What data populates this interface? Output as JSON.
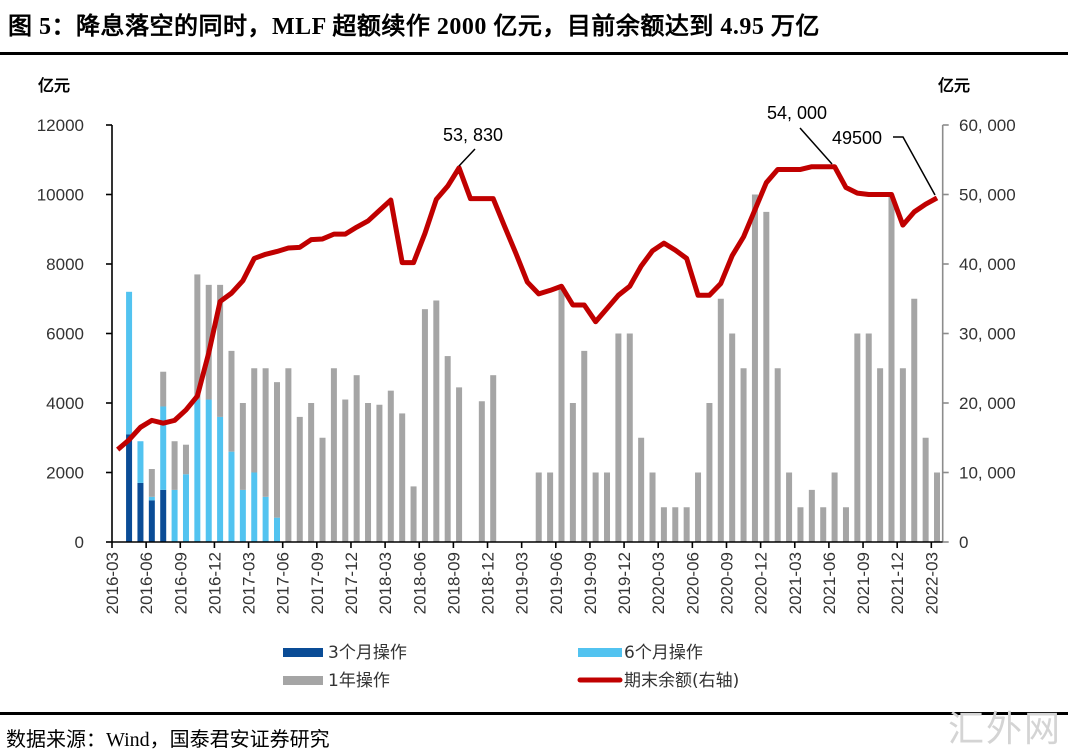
{
  "title": "图 5：降息落空的同时，MLF 超额续作 2000 亿元，目前余额达到 4.95 万亿",
  "source": "数据来源：Wind，国泰君安证券研究",
  "watermark": "汇外网",
  "colors": {
    "op_3m": "#0A4C96",
    "op_6m": "#52C3F0",
    "op_1y": "#A5A5A5",
    "balance": "#C00000"
  },
  "chart_data": {
    "type": "bar",
    "stacked": true,
    "title": "降息落空的同时，MLF 超额续作 2000 亿元，目前余额达到 4.95 万亿",
    "y_left_unit": "亿元",
    "y_right_unit": "亿元",
    "ylim_left": [
      0,
      12000
    ],
    "ylim_right": [
      0,
      60000
    ],
    "y_left_ticks": [
      "0",
      "2000",
      "4000",
      "6000",
      "8000",
      "10000",
      "12000"
    ],
    "y_right_ticks": [
      "0",
      "10, 000",
      "20, 000",
      "30, 000",
      "40, 000",
      "50, 000",
      "60, 000"
    ],
    "grid": false,
    "legend_position": "bottom",
    "categories": [
      "2016-03",
      "2016-04",
      "2016-05",
      "2016-06",
      "2016-07",
      "2016-08",
      "2016-09",
      "2016-10",
      "2016-11",
      "2016-12",
      "2017-01",
      "2017-02",
      "2017-03",
      "2017-04",
      "2017-05",
      "2017-06",
      "2017-07",
      "2017-08",
      "2017-09",
      "2017-10",
      "2017-11",
      "2017-12",
      "2018-01",
      "2018-02",
      "2018-03",
      "2018-04",
      "2018-05",
      "2018-06",
      "2018-07",
      "2018-08",
      "2018-09",
      "2018-10",
      "2018-11",
      "2018-12",
      "2019-01",
      "2019-02",
      "2019-03",
      "2019-04",
      "2019-05",
      "2019-06",
      "2019-07",
      "2019-08",
      "2019-09",
      "2019-10",
      "2019-11",
      "2019-12",
      "2020-01",
      "2020-02",
      "2020-03",
      "2020-04",
      "2020-05",
      "2020-06",
      "2020-07",
      "2020-08",
      "2020-09",
      "2020-10",
      "2020-11",
      "2020-12",
      "2021-01",
      "2021-02",
      "2021-03",
      "2021-04",
      "2021-05",
      "2021-06",
      "2021-07",
      "2021-08",
      "2021-09",
      "2021-10",
      "2021-11",
      "2021-12",
      "2022-01",
      "2022-02",
      "2022-03"
    ],
    "x_tick_labels": [
      "2016-03",
      "2016-06",
      "2016-09",
      "2016-12",
      "2017-03",
      "2017-06",
      "2017-09",
      "2017-12",
      "2018-03",
      "2018-06",
      "2018-09",
      "2018-12",
      "2019-03",
      "2019-06",
      "2019-09",
      "2019-12",
      "2020-03",
      "2020-06",
      "2020-09",
      "2020-12",
      "2021-03",
      "2021-06",
      "2021-09",
      "2021-12",
      "2022-03"
    ],
    "series": [
      {
        "name": "3个月操作",
        "type": "bar",
        "axis": "left",
        "color_key": "op_3m",
        "values": [
          0,
          3100,
          1700,
          1200,
          1500,
          0,
          0,
          0,
          0,
          0,
          0,
          0,
          0,
          0,
          0,
          0,
          0,
          0,
          0,
          0,
          0,
          0,
          0,
          0,
          0,
          0,
          0,
          0,
          0,
          0,
          0,
          0,
          0,
          0,
          0,
          0,
          0,
          0,
          0,
          0,
          0,
          0,
          0,
          0,
          0,
          0,
          0,
          0,
          0,
          0,
          0,
          0,
          0,
          0,
          0,
          0,
          0,
          0,
          0,
          0,
          0,
          0,
          0,
          0,
          0,
          0,
          0,
          0,
          0,
          0,
          0,
          0,
          0
        ]
      },
      {
        "name": "6个月操作",
        "type": "bar",
        "axis": "left",
        "color_key": "op_6m",
        "values": [
          0,
          4100,
          1200,
          100,
          2400,
          1500,
          1950,
          4100,
          4100,
          3600,
          2600,
          1500,
          2000,
          1300,
          700,
          0,
          0,
          0,
          0,
          0,
          0,
          0,
          0,
          0,
          0,
          0,
          0,
          0,
          0,
          0,
          0,
          0,
          0,
          0,
          0,
          0,
          0,
          0,
          0,
          0,
          0,
          0,
          0,
          0,
          0,
          0,
          0,
          0,
          0,
          0,
          0,
          0,
          0,
          0,
          0,
          0,
          0,
          0,
          0,
          0,
          0,
          0,
          0,
          0,
          0,
          0,
          0,
          0,
          0,
          0,
          0,
          0,
          0
        ]
      },
      {
        "name": "1年操作",
        "type": "bar",
        "axis": "left",
        "color_key": "op_1y",
        "values": [
          0,
          0,
          0,
          800,
          1000,
          1400,
          850,
          3600,
          3300,
          3800,
          2900,
          2500,
          3000,
          3700,
          3900,
          5000,
          3600,
          4000,
          3000,
          5000,
          4100,
          4800,
          4000,
          3950,
          4355,
          3700,
          1600,
          6700,
          6950,
          5350,
          4450,
          0,
          4050,
          4800,
          0,
          0,
          0,
          2000,
          2000,
          7300,
          4000,
          5500,
          2000,
          2000,
          6000,
          6000,
          3000,
          2000,
          1000,
          1000,
          1000,
          2000,
          4000,
          7000,
          6000,
          5000,
          10000,
          9500,
          5000,
          2000,
          1000,
          1500,
          1000,
          2000,
          1000,
          6000,
          6000,
          5000,
          10000,
          5000,
          7000,
          3000,
          2000
        ]
      },
      {
        "name": "期末余额(右轴)",
        "type": "line",
        "axis": "right",
        "color_key": "balance",
        "values": [
          13300,
          14700,
          16500,
          17500,
          17100,
          17500,
          19000,
          21000,
          27200,
          34600,
          35800,
          37600,
          40800,
          41400,
          41800,
          42300,
          42400,
          43500,
          43600,
          44300,
          44300,
          45300,
          46200,
          47700,
          49200,
          40200,
          40200,
          44400,
          49300,
          51200,
          53830,
          49400,
          49400,
          49400,
          45400,
          41500,
          37400,
          35700,
          36200,
          36800,
          34100,
          34100,
          31700,
          33600,
          35500,
          36800,
          39700,
          41900,
          43000,
          42000,
          40800,
          35500,
          35500,
          37200,
          41200,
          43900,
          47800,
          51700,
          53600,
          53600,
          53600,
          54000,
          54000,
          54000,
          51000,
          50200,
          50000,
          50000,
          50000,
          45600,
          47500,
          48600,
          49500
        ]
      }
    ],
    "annotations": [
      {
        "text": "53, 830",
        "category": "2018-09",
        "value": 53830
      },
      {
        "text": "54, 000",
        "category": "2021-06",
        "value": 54000
      },
      {
        "text": "49500",
        "category": "2022-03",
        "value": 49500
      }
    ]
  }
}
